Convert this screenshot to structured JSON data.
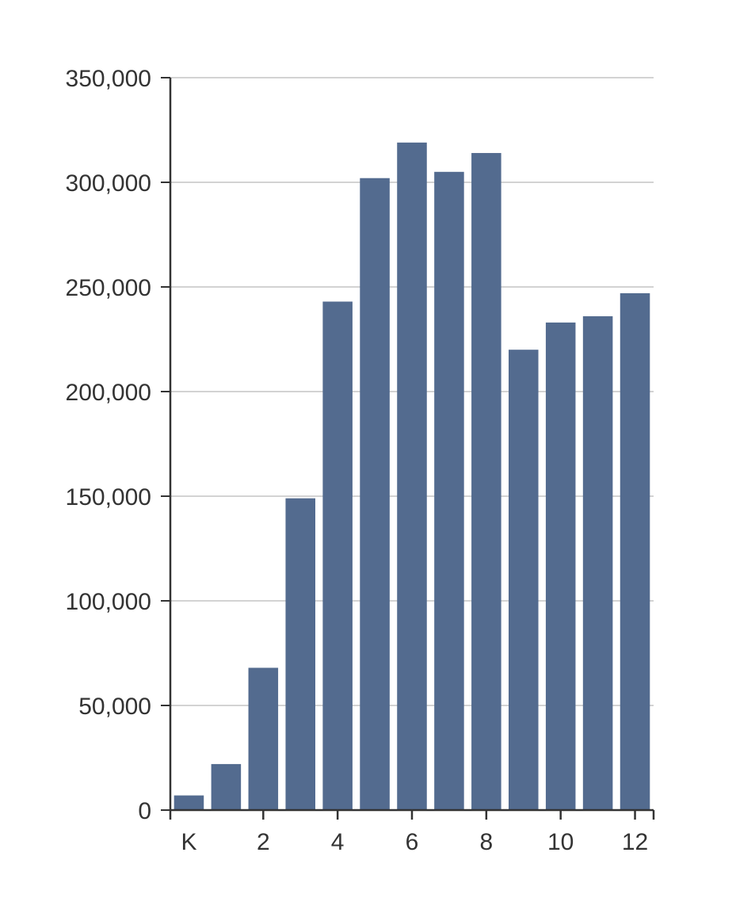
{
  "chart_data": {
    "type": "bar",
    "title": "",
    "xlabel": "",
    "ylabel": "",
    "categories": [
      "K",
      "1",
      "2",
      "3",
      "4",
      "5",
      "6",
      "7",
      "8",
      "9",
      "10",
      "11",
      "12"
    ],
    "values": [
      7000,
      22000,
      68000,
      149000,
      243000,
      302000,
      319000,
      305000,
      314000,
      220000,
      233000,
      236000,
      247000
    ],
    "ylim": [
      0,
      350000
    ],
    "yticks": [
      0,
      50000,
      100000,
      150000,
      200000,
      250000,
      300000,
      350000
    ],
    "ytick_labels": [
      "0",
      "50,000",
      "100,000",
      "150,000",
      "200,000",
      "250,000",
      "300,000",
      "350,000"
    ],
    "xtick_labels": [
      "K",
      "",
      "2",
      "",
      "4",
      "",
      "6",
      "",
      "8",
      "",
      "10",
      "",
      "12"
    ],
    "grid": true,
    "legend": "none",
    "colors": {
      "bar": "#536b8f",
      "grid": "#d3d3d3",
      "axis": "#333333",
      "text": "#333333"
    }
  }
}
